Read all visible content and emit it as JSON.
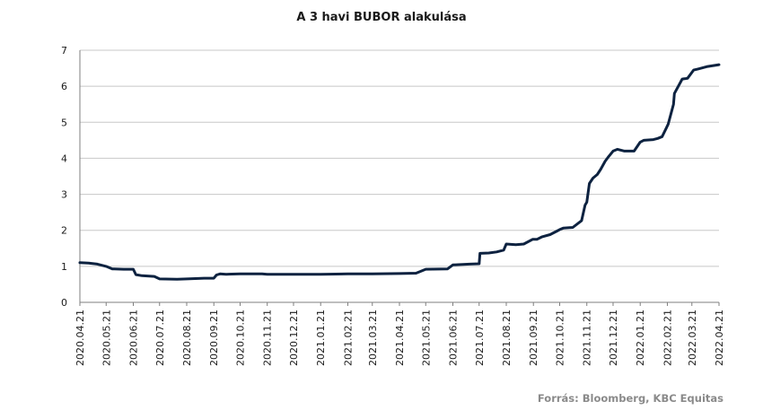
{
  "chart_data": {
    "type": "line",
    "title": "A 3 havi BUBOR alakulása",
    "source": "Forrás: Bloomberg,  KBC Equitas",
    "xlabel": "",
    "ylabel": "",
    "ylim": [
      0,
      7
    ],
    "yticks": [
      "0",
      "1",
      "2",
      "3",
      "4",
      "5",
      "6",
      "7"
    ],
    "xticks": [
      "2020.04.21",
      "2020.05.21",
      "2020.06.21",
      "2020.07.21",
      "2020.08.21",
      "2020.09.21",
      "2020.10.21",
      "2020.11.21",
      "2020.12.21",
      "2021.01.21",
      "2021.02.21",
      "2021.03.21",
      "2021.04.21",
      "2021.05.21",
      "2021.06.21",
      "2021.07.21",
      "2021.08.21",
      "2021.09.21",
      "2021.10.21",
      "2021.11.21",
      "2021.12.21",
      "2022.01.21",
      "2022.02.21",
      "2022.03.21",
      "2022.04.21"
    ],
    "grid": true,
    "color": "#0d2240",
    "series": [
      {
        "x": [
          "2020.04.21",
          "2020.05.01",
          "2020.05.11",
          "2020.05.21",
          "2020.05.28",
          "2020.06.10",
          "2020.06.21",
          "2020.06.24",
          "2020.07.01",
          "2020.07.15",
          "2020.07.21",
          "2020.08.10",
          "2020.08.21",
          "2020.09.10",
          "2020.09.21",
          "2020.09.24",
          "2020.09.28",
          "2020.10.05",
          "2020.10.21",
          "2020.11.15",
          "2020.11.21",
          "2020.12.21",
          "2021.01.21",
          "2021.02.21",
          "2021.03.21",
          "2021.04.21",
          "2021.05.10",
          "2021.05.21",
          "2021.06.15",
          "2021.06.21",
          "2021.07.10",
          "2021.07.21",
          "2021.07.22",
          "2021.08.01",
          "2021.08.10",
          "2021.08.18",
          "2021.08.21",
          "2021.09.01",
          "2021.09.10",
          "2021.09.20",
          "2021.09.25",
          "2021.10.01",
          "2021.10.10",
          "2021.10.18",
          "2021.10.21",
          "2021.10.25",
          "2021.11.05",
          "2021.11.15",
          "2021.11.19",
          "2021.11.21",
          "2021.11.24",
          "2021.11.28",
          "2021.12.03",
          "2021.12.07",
          "2021.12.12",
          "2021.12.16",
          "2021.12.21",
          "2021.12.26",
          "2022.01.03",
          "2022.01.07",
          "2022.01.14",
          "2022.01.21",
          "2022.01.25",
          "2022.02.05",
          "2022.02.10",
          "2022.02.15",
          "2022.02.20",
          "2022.02.22",
          "2022.02.28",
          "2022.03.01",
          "2022.03.10",
          "2022.03.16",
          "2022.03.23",
          "2022.03.28",
          "2022.04.08",
          "2022.04.21"
        ],
        "values": [
          1.1,
          1.09,
          1.06,
          1.0,
          0.93,
          0.92,
          0.92,
          0.77,
          0.74,
          0.72,
          0.65,
          0.64,
          0.65,
          0.67,
          0.67,
          0.76,
          0.79,
          0.78,
          0.79,
          0.79,
          0.78,
          0.78,
          0.78,
          0.79,
          0.79,
          0.8,
          0.81,
          0.92,
          0.93,
          1.04,
          1.06,
          1.07,
          1.36,
          1.37,
          1.4,
          1.45,
          1.62,
          1.6,
          1.62,
          1.75,
          1.75,
          1.82,
          1.88,
          1.98,
          2.02,
          2.06,
          2.08,
          2.27,
          2.7,
          2.78,
          3.3,
          3.45,
          3.55,
          3.7,
          3.92,
          4.05,
          4.2,
          4.25,
          4.2,
          4.2,
          4.2,
          4.45,
          4.5,
          4.52,
          4.55,
          4.6,
          4.85,
          4.95,
          5.5,
          5.8,
          6.2,
          6.22,
          6.45,
          6.48,
          6.55,
          6.6
        ]
      }
    ]
  }
}
